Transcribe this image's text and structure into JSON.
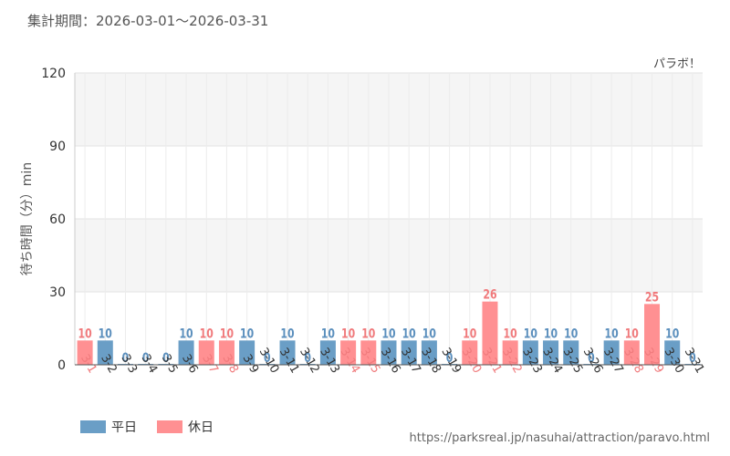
{
  "header": {
    "period_label": "集計期間：2026-03-01～2026-03-31"
  },
  "footer": {
    "url": "https://parksreal.jp/nasuhai/attraction/paravo.html"
  },
  "colors": {
    "weekday": "#6a9ec6",
    "holiday": "#ff9092",
    "holiday_label": "#f07a7c",
    "weekday_label": "#5b8fbd"
  },
  "chart_data": {
    "type": "bar",
    "title": "パラボ！",
    "ylabel": "待ち時間（分）min",
    "xlabel": "",
    "ylim": [
      0,
      120
    ],
    "yticks": [
      0,
      30,
      60,
      90,
      120
    ],
    "grid": true,
    "legend_position": "bottom-left",
    "legend": [
      {
        "name": "平日",
        "kind": "weekday"
      },
      {
        "name": "休日",
        "kind": "holiday"
      }
    ],
    "categories": [
      "3-1",
      "3-2",
      "3-3",
      "3-4",
      "3-5",
      "3-6",
      "3-7",
      "3-8",
      "3-9",
      "3-10",
      "3-11",
      "3-12",
      "3-13",
      "3-14",
      "3-15",
      "3-16",
      "3-17",
      "3-18",
      "3-19",
      "3-20",
      "3-21",
      "3-22",
      "3-23",
      "3-24",
      "3-25",
      "3-26",
      "3-27",
      "3-28",
      "3-29",
      "3-30",
      "3-31"
    ],
    "values": [
      10,
      10,
      0,
      0,
      0,
      10,
      10,
      10,
      10,
      0,
      10,
      0,
      10,
      10,
      10,
      10,
      10,
      10,
      0,
      10,
      26,
      10,
      10,
      10,
      10,
      0,
      10,
      10,
      25,
      10,
      0
    ],
    "day_type": [
      "holiday",
      "weekday",
      "weekday",
      "weekday",
      "weekday",
      "weekday",
      "holiday",
      "holiday",
      "weekday",
      "weekday",
      "weekday",
      "weekday",
      "weekday",
      "holiday",
      "holiday",
      "weekday",
      "weekday",
      "weekday",
      "weekday",
      "holiday",
      "holiday",
      "holiday",
      "weekday",
      "weekday",
      "weekday",
      "weekday",
      "weekday",
      "holiday",
      "holiday",
      "weekday",
      "weekday"
    ]
  }
}
